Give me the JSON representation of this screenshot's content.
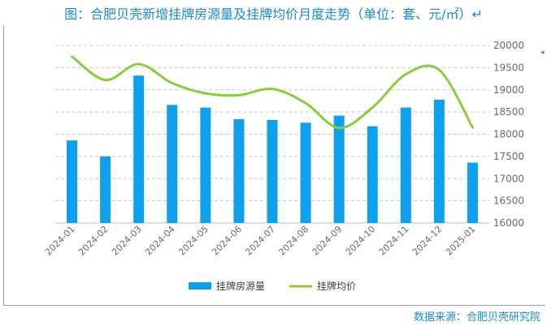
{
  "title": "图：合肥贝壳新增挂牌房源量及挂牌均价月度走势（单位：套、元/㎡）↵",
  "source": "数据来源：合肥贝壳研究院",
  "chart_data": {
    "type": "bar",
    "categories": [
      "2024-01",
      "2024-02",
      "2024-03",
      "2024-04",
      "2024-05",
      "2024-06",
      "2024-07",
      "2024-08",
      "2024-09",
      "2024-10",
      "2024-11",
      "2024-12",
      "2025-01"
    ],
    "series": [
      {
        "name": "挂牌房源量",
        "kind": "bar",
        "axis": "left",
        "values": [
          9300,
          7500,
          16600,
          13300,
          13000,
          11700,
          11600,
          11300,
          12100,
          10900,
          13000,
          13900,
          6800
        ]
      },
      {
        "name": "挂牌均价",
        "kind": "line",
        "axis": "right",
        "values": [
          19750,
          19220,
          19580,
          19150,
          18920,
          18880,
          19020,
          18700,
          18140,
          18600,
          19350,
          19450,
          18150
        ]
      }
    ],
    "y_left_lim": [
      0,
      20000
    ],
    "y_right_lim": [
      16000,
      20000
    ],
    "y_right_ticks": [
      "20000",
      "19500",
      "19000",
      "18500",
      "18000",
      "17500",
      "17000",
      "16500",
      "16000"
    ],
    "grid": true,
    "legend_position": "bottom-center",
    "colors": {
      "bar": "#0ea0ec",
      "line": "#8ccb3e",
      "title": "#1b8ad3",
      "grid": "#c8c8c8"
    }
  }
}
